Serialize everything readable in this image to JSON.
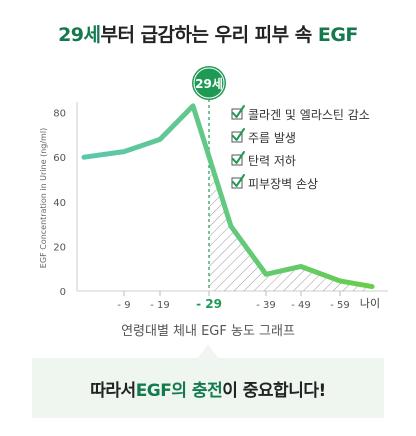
{
  "headline": {
    "part1": "29세",
    "part2": "부터 급감하는 우리 피부 속 ",
    "part3": "EGF"
  },
  "marker_badge": "29세",
  "legend_checks": [
    "콜라겐 및 엘라스틴 감소",
    "주름 발생",
    "탄력 저하",
    "피부장벽 손상"
  ],
  "caption": "연령대별 체내 EGF 농도 그래프",
  "banner": {
    "part1": "따라서 ",
    "part2": "EGF의 충전",
    "part3": "이 중요합니다!"
  },
  "colors": {
    "line_before": "#5cc6b0",
    "line_after": "#68cc4c",
    "highlight": "#1f9a55",
    "accent_dark": "#147a4e",
    "banner_bg": "#eef6ef"
  },
  "chart_data": {
    "type": "line",
    "ylabel": "EGF Concentration in Urine (ng/ml)",
    "ylim": [
      0,
      90
    ],
    "yticks": [
      0,
      20,
      40,
      60,
      80
    ],
    "tick_labels": [
      "- 9",
      "- 19",
      "- 29",
      "- 39",
      "- 49",
      "- 59"
    ],
    "x_end_label": "나이",
    "highlight_tick": "- 29",
    "points": [
      {
        "x": "start",
        "y": 60
      },
      {
        "x": "- 9",
        "y": 62.5
      },
      {
        "x": "- 19",
        "y": 68
      },
      {
        "x": "peak",
        "y": 83
      },
      {
        "x": "after-29",
        "y": 29
      },
      {
        "x": "- 39",
        "y": 7.5
      },
      {
        "x": "- 49",
        "y": 11
      },
      {
        "x": "- 59",
        "y": 4.5
      },
      {
        "x": "end",
        "y": 2
      }
    ]
  }
}
